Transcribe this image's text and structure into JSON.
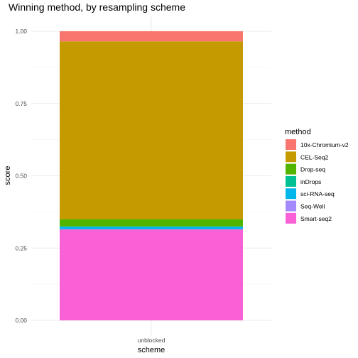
{
  "chart_data": {
    "type": "bar",
    "title": "Winning method, by resampling scheme",
    "xlabel": "scheme",
    "ylabel": "score",
    "categories": [
      "unblocked"
    ],
    "ylim": [
      0,
      1.05
    ],
    "yticks": [
      0.0,
      0.25,
      0.5,
      0.75,
      1.0
    ],
    "ytick_labels": [
      "0.00",
      "0.25",
      "0.50",
      "0.75",
      "1.00"
    ],
    "grid": true,
    "stacked": true,
    "legend": {
      "title": "method",
      "position": "right"
    },
    "series": [
      {
        "name": "10x-Chromium-v2",
        "color": "#F8766D",
        "values": [
          0.035
        ]
      },
      {
        "name": "CEL-Seq2",
        "color": "#C49A00",
        "values": [
          0.615
        ]
      },
      {
        "name": "Drop-seq",
        "color": "#53B400",
        "values": [
          0.025
        ]
      },
      {
        "name": "inDrops",
        "color": "#00C094",
        "values": [
          0.0
        ]
      },
      {
        "name": "sci-RNA-seq",
        "color": "#00B6EB",
        "values": [
          0.01
        ]
      },
      {
        "name": "Seq-Well",
        "color": "#A58AFF",
        "values": [
          0.0
        ]
      },
      {
        "name": "Smart-seq2",
        "color": "#FB61D7",
        "values": [
          0.315
        ]
      }
    ]
  }
}
